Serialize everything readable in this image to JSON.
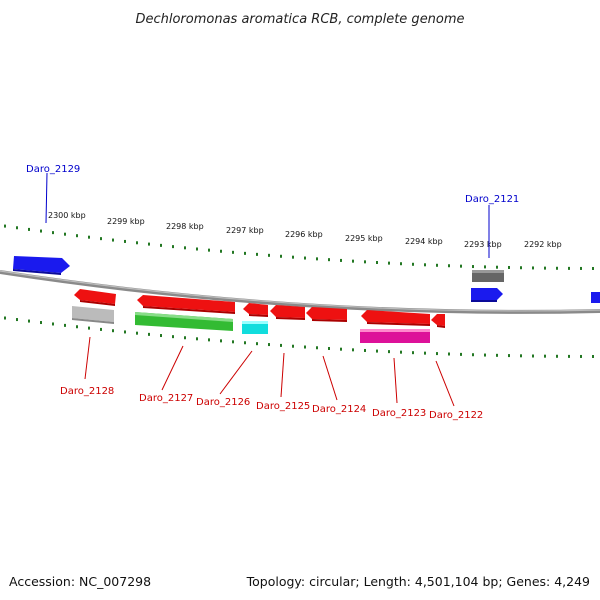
{
  "title": "Dechloromonas aromatica RCB, complete genome",
  "footer": {
    "accession": "Accession: NC_007298",
    "summary": "Topology: circular; Length: 4,501,104 bp; Genes: 4,249"
  },
  "scale": {
    "tick_labels": [
      "2300 kbp",
      "2299 kbp",
      "2298 kbp",
      "2297 kbp",
      "2296 kbp",
      "2295 kbp",
      "2294 kbp",
      "2293 kbp",
      "2292 kbp"
    ]
  },
  "gene_labels": {
    "top": [
      "Daro_2129",
      "Daro_2121"
    ],
    "bottom": [
      "Daro_2128",
      "Daro_2127",
      "Daro_2126",
      "Daro_2125",
      "Daro_2124",
      "Daro_2123",
      "Daro_2122"
    ]
  },
  "colors": {
    "blue": "#1a1aee",
    "red": "#ee1111",
    "green": "#33bb33",
    "cyan": "#11dddd",
    "magenta": "#dd1199",
    "gray": "#bbbbbb",
    "darkgray": "#666666",
    "tick_green": "#227722",
    "backbone": "#888888"
  }
}
